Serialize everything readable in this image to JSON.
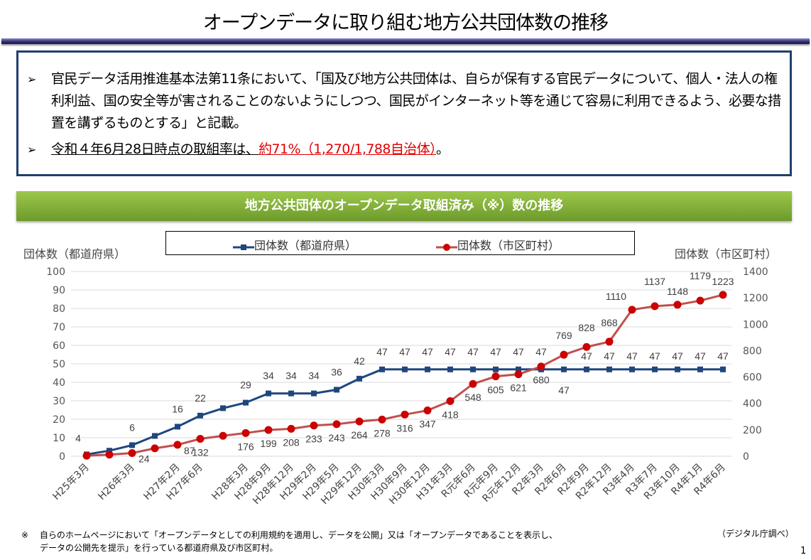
{
  "title": "オープンデータに取り組む地方公共団体数の推移",
  "bullets": {
    "arrow_icon": "triangle-right",
    "b1": "官民データ活用推進基本法第11条において、「国及び地方公共団体は、自らが保有する官民データについて、個人・法人の権利利益、国の安全等が害されることのないようにしつつ、国民がインターネット等を通じて容易に利用できるよう、必要な措置を講ずるものとする」と記載。",
    "b2_prefix": "令和４年6月28日時点の取組率は、",
    "b2_highlight": "約71%（1,270/1,788自治体）",
    "b2_suffix": "。"
  },
  "banner": "地方公共団体のオープンデータ取組済み（※）数の推移",
  "footnote": {
    "mark": "※",
    "line1": "自らのホームページにおいて「オープンデータとしての利用規約を適用し、データを公開」又は「オープンデータであることを表示し、",
    "line2": "データの公開先を提示」を行っている都道府県及び市区町村。",
    "source": "（デジタル庁調べ）",
    "page": "1"
  },
  "chart_data": {
    "type": "line",
    "ylabel_left": "団体数（都道府県）",
    "ylabel_right": "団体数（市区町村）",
    "ylim_left": [
      0,
      100
    ],
    "ylim_right": [
      0,
      1400
    ],
    "yticks_left": [
      0,
      10,
      20,
      30,
      40,
      50,
      60,
      70,
      80,
      90,
      100
    ],
    "yticks_right": [
      0,
      200,
      400,
      600,
      800,
      1000,
      1200,
      1400
    ],
    "grid": true,
    "legend": "top",
    "categories": [
      "H25年3月",
      "",
      "H26年3月",
      "",
      "H27年2月",
      "H27年6月",
      "",
      "H28年3月",
      "H28年9月",
      "H28年12月",
      "H29年2月",
      "H29年5月",
      "H29年12月",
      "H30年3月",
      "H30年9月",
      "H30年12月",
      "H31年3月",
      "R元年6月",
      "R元年9月",
      "R元年12月",
      "R2年3月",
      "R2年6月",
      "R2年9月",
      "R2年12月",
      "R3年4月",
      "R3年7月",
      "R3年10月",
      "R4年1月",
      "R4年6月"
    ],
    "series": [
      {
        "name": "団体数（都道府県）",
        "axis": "left",
        "color": "#1f477d",
        "marker": "square",
        "values": [
          1,
          3,
          6,
          11,
          16,
          22,
          26,
          29,
          34,
          34,
          34,
          36,
          42,
          47,
          47,
          47,
          47,
          47,
          47,
          47,
          47,
          47,
          47,
          47,
          47,
          47,
          47,
          47,
          47
        ],
        "labels": [
          null,
          null,
          "6",
          null,
          "16",
          "22",
          null,
          "29",
          "34",
          "34",
          "34",
          "36",
          "42",
          "47",
          "47",
          "47",
          "47",
          "47",
          "47",
          "47",
          "47",
          "47",
          "47",
          "47",
          "47",
          "47",
          "47",
          "47",
          "47"
        ]
      },
      {
        "name": "団体数（市区町村）",
        "axis": "right",
        "color": "#c0504d",
        "marker_color": "#cc0000",
        "marker": "circle",
        "values": [
          4,
          12,
          24,
          60,
          87,
          132,
          155,
          176,
          199,
          208,
          233,
          243,
          264,
          278,
          316,
          347,
          418,
          548,
          605,
          621,
          680,
          769,
          828,
          868,
          1110,
          1137,
          1148,
          1179,
          1223
        ],
        "labels": [
          "4",
          null,
          "24",
          null,
          "87",
          "132",
          null,
          "176",
          "199",
          "208",
          "233",
          "243",
          "264",
          "278",
          "316",
          "347",
          "418",
          "548",
          "605",
          "621",
          "680",
          "769",
          "828",
          "868",
          "1110",
          "1137",
          "1148",
          "1179",
          "1223"
        ]
      }
    ]
  }
}
